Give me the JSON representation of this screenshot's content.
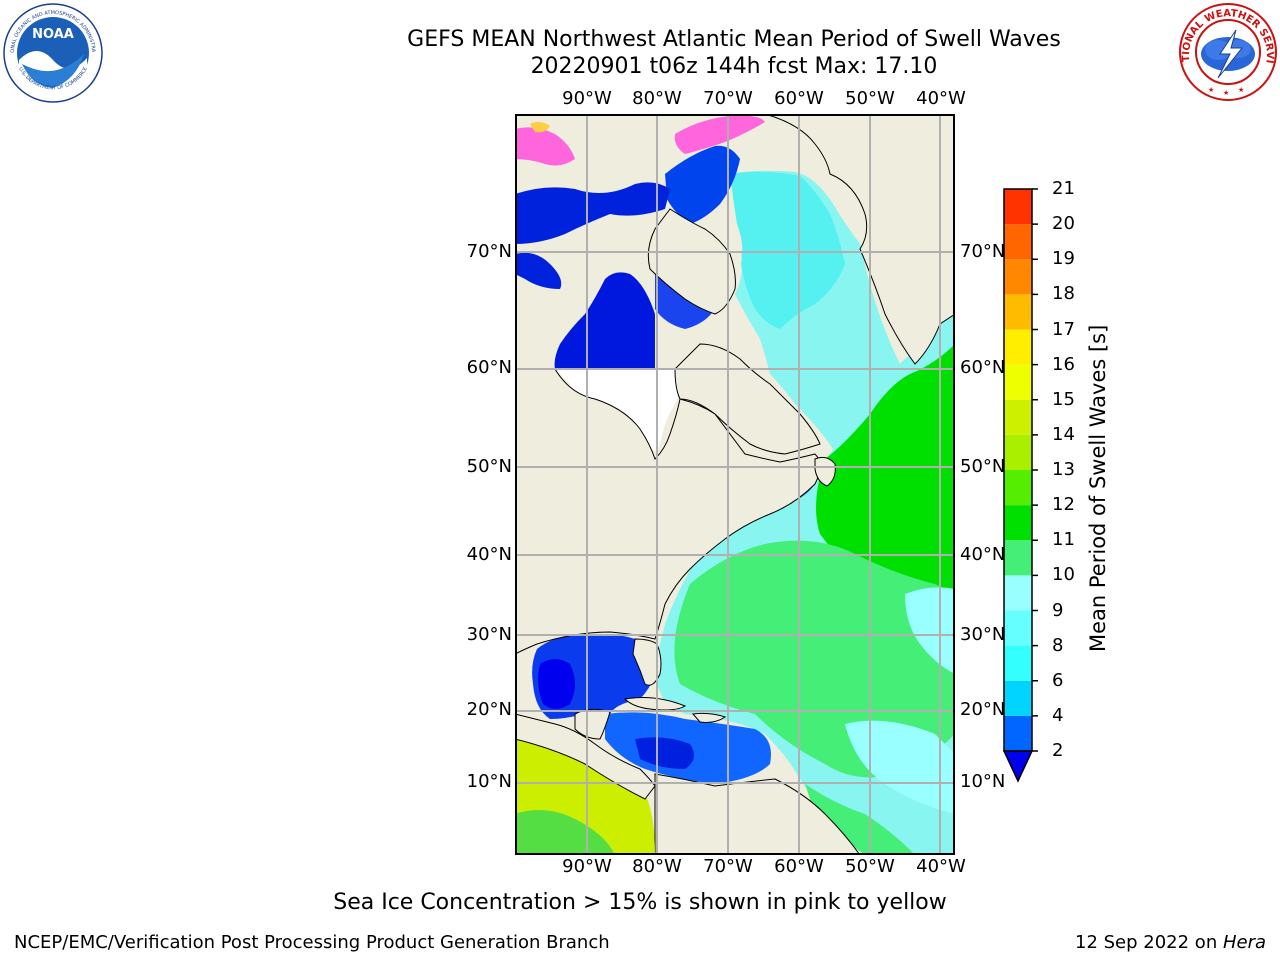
{
  "title_line1": "GEFS MEAN Northwest Atlantic Mean Period of Swell Waves",
  "title_line2": "20220901 t06z 144h fcst   Max: 17.10",
  "lon_labels": [
    "90°W",
    "80°W",
    "70°W",
    "60°W",
    "50°W",
    "40°W"
  ],
  "lat_labels": [
    "70°N",
    "60°N",
    "50°N",
    "40°N",
    "30°N",
    "20°N",
    "10°N"
  ],
  "colorbar": {
    "title": "Mean Period of Swell Waves [s]",
    "ticks": [
      "2",
      "4",
      "6",
      "8",
      "9",
      "10",
      "11",
      "12",
      "13",
      "14",
      "15",
      "16",
      "17",
      "18",
      "19",
      "20",
      "21"
    ],
    "colors": [
      "#0066ff",
      "#00d4ff",
      "#33ffff",
      "#66ffff",
      "#99ffff",
      "#44ee77",
      "#00e000",
      "#55ee00",
      "#aaee00",
      "#ccf000",
      "#eeff00",
      "#ffee00",
      "#ffbb00",
      "#ff8800",
      "#ff6600",
      "#ff3300",
      "#ff0000"
    ],
    "under_color": "#0000ee"
  },
  "footer_note": "Sea Ice Concentration > 15% is shown in pink to yellow",
  "credit_left": "NCEP/EMC/Verification Post Processing Product Generation Branch",
  "credit_right_date": "12 Sep 2022 on ",
  "credit_right_host": "Hera",
  "logos": {
    "noaa_text": "NOAA",
    "noaa_ring_top": "NATIONAL OCEANIC AND ATMOSPHERIC ADMINISTRATION",
    "noaa_ring_bottom": "U.S. DEPARTMENT OF COMMERCE",
    "nws_ring": "NATIONAL WEATHER SERVICE"
  },
  "colors": {
    "land": "#efedde",
    "grid": "#b0b0b0"
  }
}
